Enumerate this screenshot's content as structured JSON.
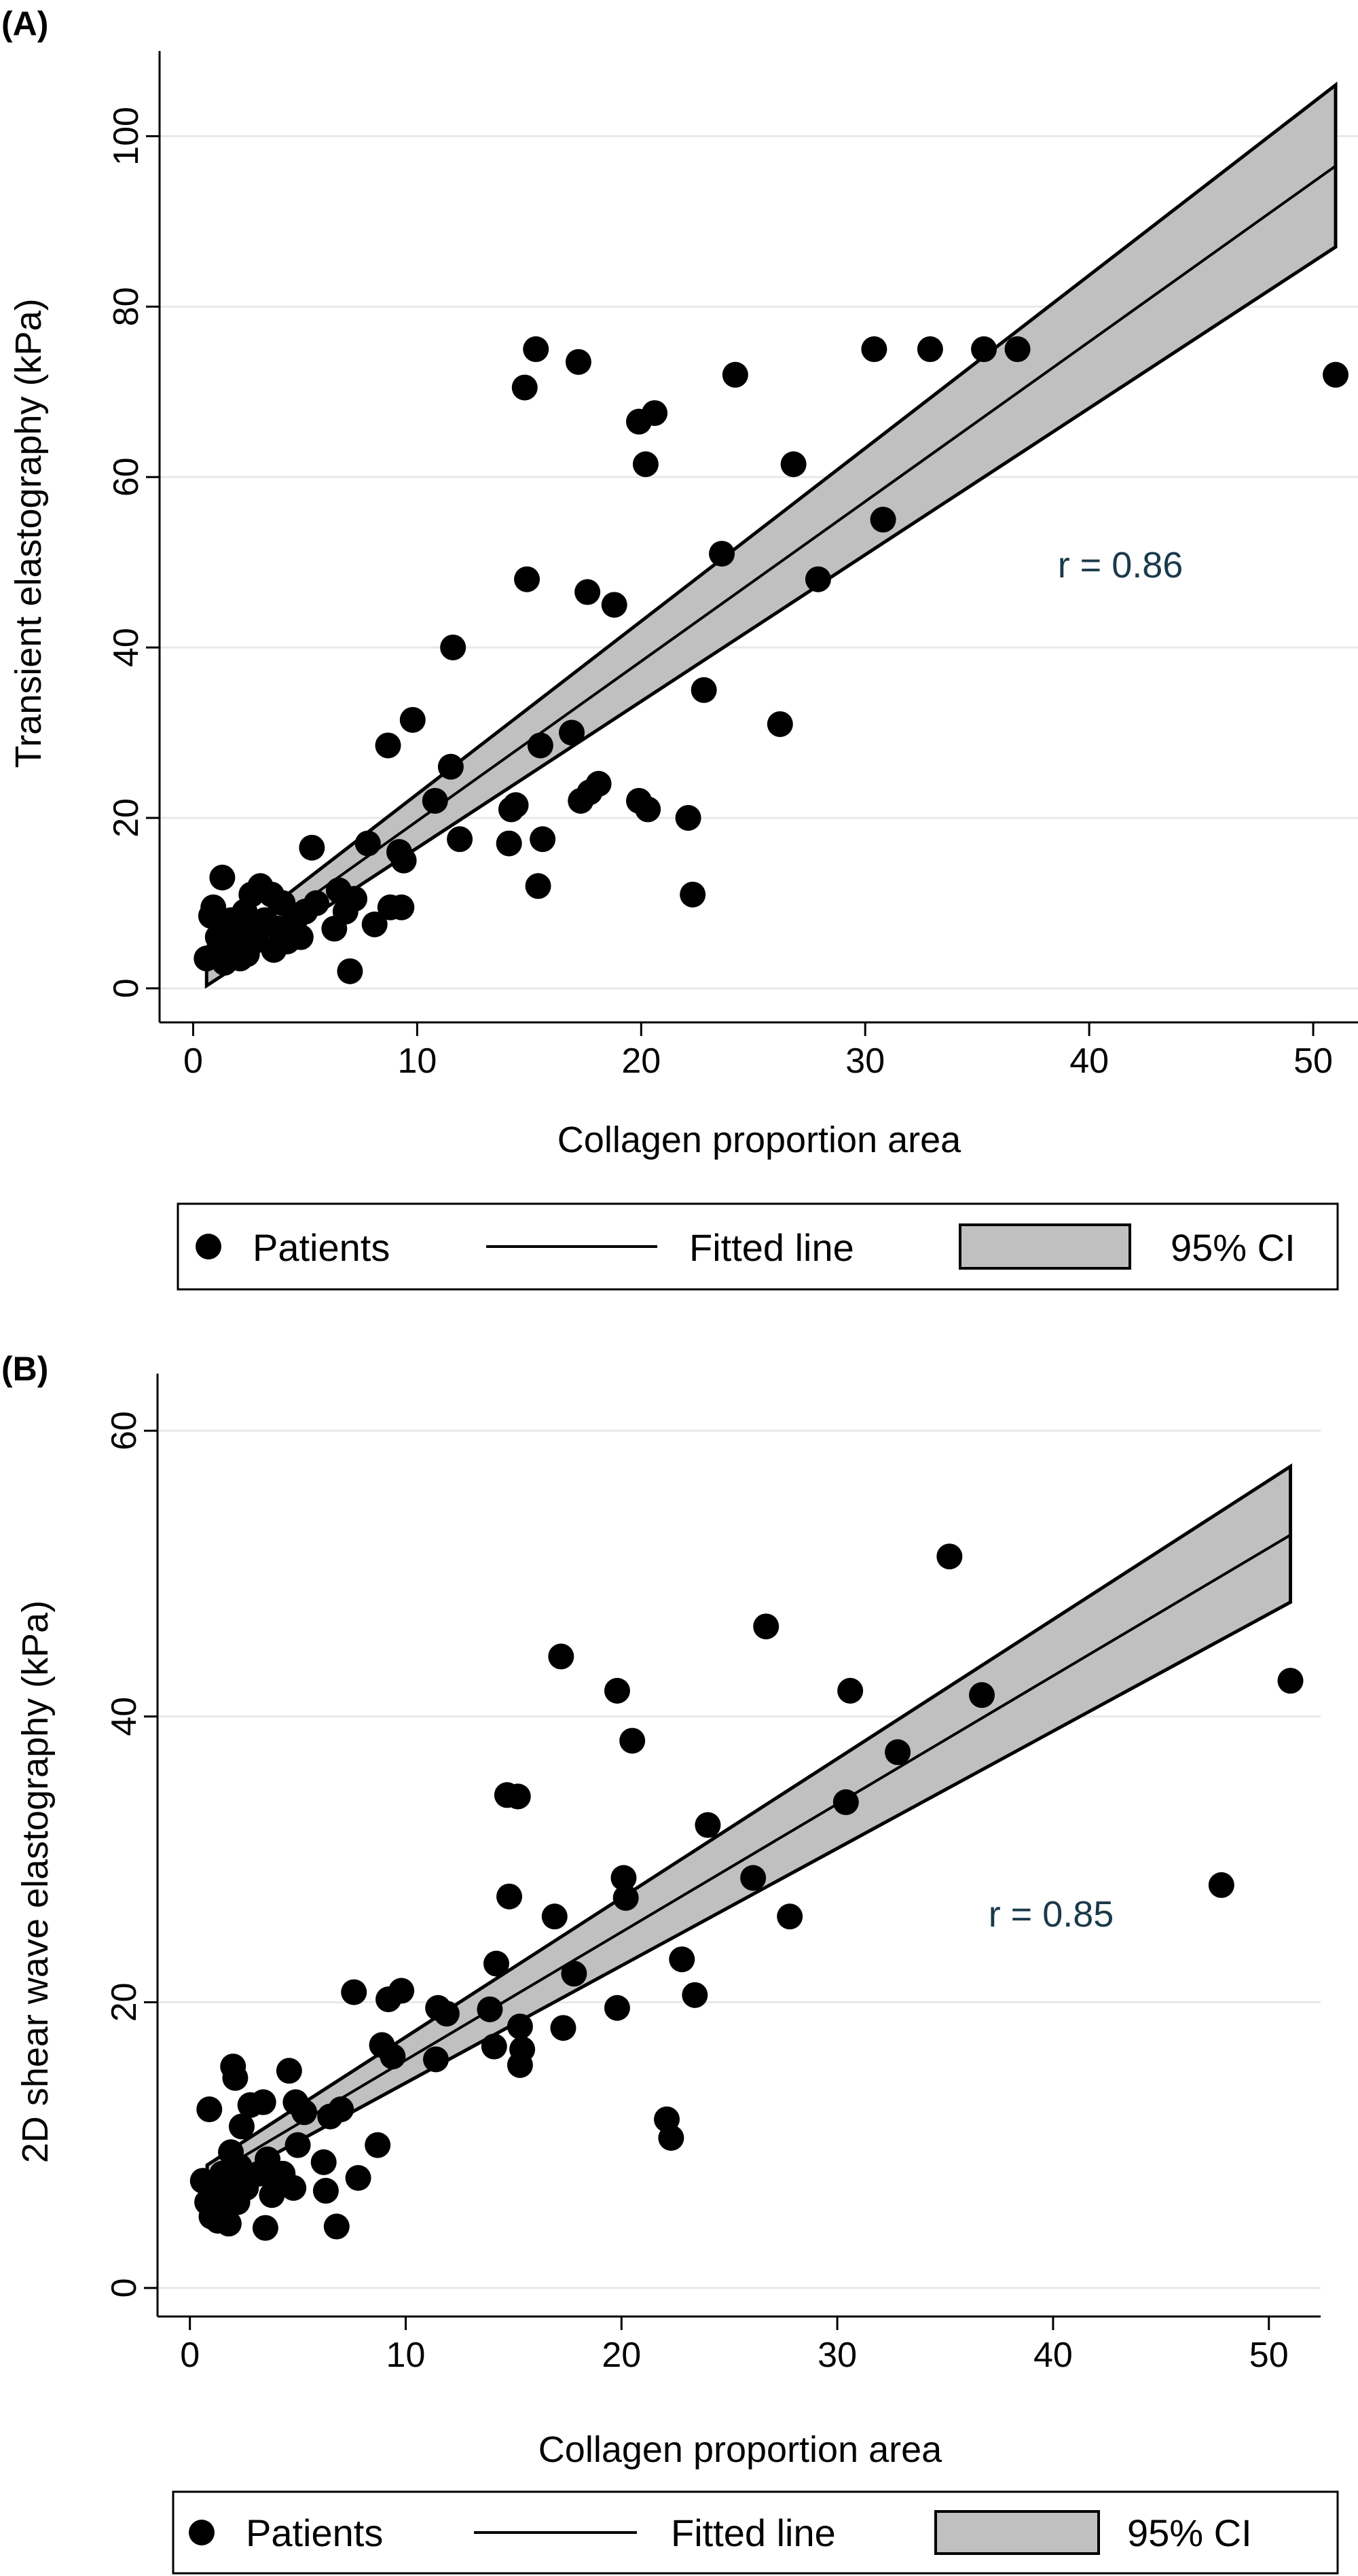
{
  "chart_data": [
    {
      "panel_label": "(A)",
      "type": "scatter",
      "xlabel": "Collagen proportion area",
      "ylabel": "Transient elastography (kPa)",
      "xlim": [
        -1.5,
        52
      ],
      "ylim": [
        -4,
        110
      ],
      "xticks": [
        0,
        10,
        20,
        30,
        40,
        50
      ],
      "yticks": [
        0,
        20,
        40,
        60,
        80,
        100
      ],
      "grid": "horizontal",
      "annotation": "r = 0.86",
      "annotation_position": [
        40.3,
        49
      ],
      "fitted_line": {
        "x_start": 0.6,
        "y_start": 2.0,
        "x_end": 51,
        "y_end": 96.5
      },
      "ci_band": {
        "lower": [
          [
            0.6,
            0.3
          ],
          [
            51,
            87
          ]
        ],
        "upper": [
          [
            0.6,
            3.7
          ],
          [
            51,
            106
          ]
        ]
      },
      "series": [
        {
          "name": "Patients",
          "points": [
            [
              0.6,
              3.5
            ],
            [
              0.8,
              8.5
            ],
            [
              0.9,
              9.5
            ],
            [
              1,
              4
            ],
            [
              1.1,
              6
            ],
            [
              1.2,
              5
            ],
            [
              1.3,
              13
            ],
            [
              1.4,
              3
            ],
            [
              1.5,
              7
            ],
            [
              1.6,
              4
            ],
            [
              1.7,
              8
            ],
            [
              1.8,
              5
            ],
            [
              2,
              6
            ],
            [
              2.1,
              3.5
            ],
            [
              2.2,
              7.5
            ],
            [
              2.3,
              9
            ],
            [
              2.4,
              4
            ],
            [
              2.5,
              5
            ],
            [
              2.6,
              11
            ],
            [
              2.8,
              6
            ],
            [
              3,
              12
            ],
            [
              3.2,
              8
            ],
            [
              3.5,
              11
            ],
            [
              3.6,
              4.5
            ],
            [
              3.8,
              7
            ],
            [
              4,
              10
            ],
            [
              4.2,
              5.5
            ],
            [
              4.5,
              7.5
            ],
            [
              4.8,
              6
            ],
            [
              5,
              9
            ],
            [
              5.3,
              16.5
            ],
            [
              5.5,
              10
            ],
            [
              6.3,
              7
            ],
            [
              6.5,
              11.5
            ],
            [
              6.8,
              9
            ],
            [
              7,
              2
            ],
            [
              7.2,
              10.5
            ],
            [
              7.8,
              17
            ],
            [
              8.1,
              7.5
            ],
            [
              8.7,
              28.5
            ],
            [
              8.8,
              9.5
            ],
            [
              9.2,
              16
            ],
            [
              9.3,
              9.5
            ],
            [
              9.4,
              15
            ],
            [
              9.8,
              31.5
            ],
            [
              10.8,
              22
            ],
            [
              11.5,
              26
            ],
            [
              11.6,
              40
            ],
            [
              11.9,
              17.5
            ],
            [
              14.1,
              17
            ],
            [
              14.2,
              21
            ],
            [
              14.4,
              21.5
            ],
            [
              14.8,
              70.5
            ],
            [
              14.9,
              48
            ],
            [
              15.3,
              75
            ],
            [
              15.4,
              12
            ],
            [
              15.5,
              28.5
            ],
            [
              15.6,
              17.5
            ],
            [
              16.9,
              30
            ],
            [
              17.2,
              73.5
            ],
            [
              17.3,
              22
            ],
            [
              17.6,
              46.5
            ],
            [
              17.7,
              23
            ],
            [
              18.1,
              24
            ],
            [
              18.8,
              45
            ],
            [
              19.9,
              22
            ],
            [
              19.9,
              66.5
            ],
            [
              20.2,
              61.5
            ],
            [
              20.3,
              21
            ],
            [
              20.6,
              67.5
            ],
            [
              22.1,
              20
            ],
            [
              22.3,
              11
            ],
            [
              22.8,
              35
            ],
            [
              23.6,
              51
            ],
            [
              24.2,
              72
            ],
            [
              26.2,
              31
            ],
            [
              26.8,
              61.5
            ],
            [
              27.9,
              48
            ],
            [
              30.4,
              75
            ],
            [
              30.8,
              55
            ],
            [
              32.9,
              75
            ],
            [
              35.3,
              75
            ],
            [
              36.8,
              75
            ],
            [
              51,
              72
            ]
          ]
        }
      ],
      "legend": {
        "position": "bottom",
        "entries": [
          {
            "label": "Patients",
            "symbol": "dot"
          },
          {
            "label": "Fitted line",
            "symbol": "line"
          },
          {
            "label": "95% CI",
            "symbol": "box"
          }
        ]
      }
    },
    {
      "panel_label": "(B)",
      "type": "scatter",
      "xlabel": "Collagen proportion area",
      "ylabel": "2D shear wave elastography (kPa)",
      "xlim": [
        -1.5,
        52.4
      ],
      "ylim": [
        -2,
        64
      ],
      "xticks": [
        0,
        10,
        20,
        30,
        40,
        50
      ],
      "yticks": [
        0,
        20,
        40,
        60
      ],
      "grid": "horizontal",
      "annotation": "r = 0.85",
      "annotation_position": [
        39.5,
        24.5
      ],
      "fitted_line": {
        "x_start": 0.8,
        "y_start": 7.7,
        "x_end": 51,
        "y_end": 52.7
      },
      "ci_band": {
        "lower": [
          [
            0.8,
            6.8
          ],
          [
            51,
            48
          ]
        ],
        "upper": [
          [
            0.8,
            8.6
          ],
          [
            51,
            57.5
          ]
        ]
      },
      "series": [
        {
          "name": "Patients",
          "points": [
            [
              0.6,
              7.5
            ],
            [
              0.8,
              6
            ],
            [
              0.9,
              12.5
            ],
            [
              1,
              5
            ],
            [
              1.2,
              7
            ],
            [
              1.3,
              4.7
            ],
            [
              1.4,
              6.5
            ],
            [
              1.5,
              8
            ],
            [
              1.6,
              5
            ],
            [
              1.7,
              7.5
            ],
            [
              1.8,
              4.5
            ],
            [
              1.9,
              9.5
            ],
            [
              2,
              15.5
            ],
            [
              2.1,
              14.7
            ],
            [
              2.2,
              6
            ],
            [
              2.3,
              8.5
            ],
            [
              2.4,
              11.3
            ],
            [
              2.6,
              7
            ],
            [
              2.8,
              12.8
            ],
            [
              3.2,
              8
            ],
            [
              3.4,
              13
            ],
            [
              3.5,
              4.2
            ],
            [
              3.6,
              9
            ],
            [
              3.8,
              6.5
            ],
            [
              4,
              7.5
            ],
            [
              4.3,
              8
            ],
            [
              4.6,
              15.2
            ],
            [
              4.8,
              7
            ],
            [
              4.9,
              13
            ],
            [
              5,
              10
            ],
            [
              5.3,
              12.3
            ],
            [
              6.2,
              8.8
            ],
            [
              6.3,
              6.8
            ],
            [
              6.5,
              12
            ],
            [
              6.8,
              4.3
            ],
            [
              7,
              12.5
            ],
            [
              7.6,
              20.7
            ],
            [
              7.8,
              7.7
            ],
            [
              8.7,
              10
            ],
            [
              8.9,
              17
            ],
            [
              9.2,
              20.2
            ],
            [
              9.4,
              16.2
            ],
            [
              9.8,
              20.8
            ],
            [
              11.4,
              16
            ],
            [
              11.5,
              19.6
            ],
            [
              11.9,
              19.2
            ],
            [
              13.9,
              19.5
            ],
            [
              14.1,
              16.9
            ],
            [
              14.2,
              22.7
            ],
            [
              14.7,
              34.5
            ],
            [
              14.8,
              27.4
            ],
            [
              15.2,
              34.4
            ],
            [
              15.3,
              15.6
            ],
            [
              15.3,
              18.3
            ],
            [
              15.4,
              16.7
            ],
            [
              16.9,
              26
            ],
            [
              17.2,
              44.2
            ],
            [
              17.3,
              18.2
            ],
            [
              17.8,
              22
            ],
            [
              19.8,
              41.8
            ],
            [
              19.8,
              19.6
            ],
            [
              20.1,
              28.7
            ],
            [
              20.2,
              27.3
            ],
            [
              20.5,
              38.3
            ],
            [
              22.1,
              11.8
            ],
            [
              22.3,
              10.5
            ],
            [
              22.8,
              23
            ],
            [
              23.4,
              20.5
            ],
            [
              24,
              32.4
            ],
            [
              26.1,
              28.7
            ],
            [
              26.7,
              46.3
            ],
            [
              27.8,
              26
            ],
            [
              30.4,
              34
            ],
            [
              30.6,
              41.8
            ],
            [
              32.8,
              37.5
            ],
            [
              35.2,
              51.2
            ],
            [
              36.7,
              41.5
            ],
            [
              47.8,
              28.2
            ],
            [
              51,
              42.5
            ]
          ]
        }
      ],
      "legend": {
        "position": "bottom",
        "entries": [
          {
            "label": "Patients",
            "symbol": "dot"
          },
          {
            "label": "Fitted line",
            "symbol": "line"
          },
          {
            "label": "95% CI",
            "symbol": "box"
          }
        ]
      }
    }
  ]
}
